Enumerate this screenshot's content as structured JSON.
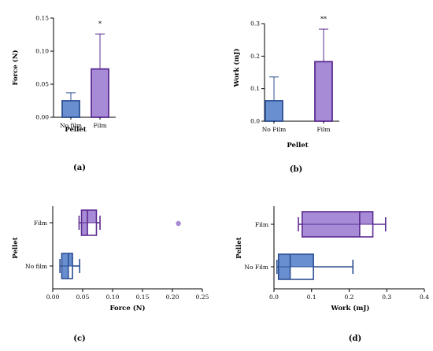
{
  "colors": {
    "blue": "#6a8fd0",
    "blue_stroke": "#2c4f93",
    "purple": "#a78bd6",
    "purple_stroke": "#5b2c91",
    "axis": "#000000"
  },
  "chart_data": [
    {
      "id": "a",
      "type": "bar",
      "panel_label": "(a)",
      "categories": [
        "No film",
        "Film"
      ],
      "values": [
        0.025,
        0.073
      ],
      "errors": [
        0.012,
        0.053
      ],
      "significance": [
        "",
        "*"
      ],
      "xlabel": "Pellet",
      "ylabel": "Force (N)",
      "ylim": [
        0,
        0.15
      ],
      "yticks": [
        0.0,
        0.05,
        0.1,
        0.15
      ],
      "ytick_labels": [
        "0.00",
        "0.05",
        "0.10",
        "0.15"
      ],
      "grid": false
    },
    {
      "id": "b",
      "type": "bar",
      "panel_label": "(b)",
      "categories": [
        "No Film",
        "Film"
      ],
      "values": [
        0.063,
        0.183
      ],
      "errors": [
        0.073,
        0.1
      ],
      "significance": [
        "",
        "**"
      ],
      "xlabel": "Pellet",
      "ylabel": "Work (mJ)",
      "ylim": [
        0,
        0.3
      ],
      "yticks": [
        0.0,
        0.1,
        0.2,
        0.3
      ],
      "ytick_labels": [
        "0.0",
        "0.1",
        "0.2",
        "0.3"
      ],
      "grid": false
    },
    {
      "id": "c",
      "type": "box",
      "orientation": "horizontal",
      "panel_label": "(c)",
      "categories": [
        "Film",
        "No film"
      ],
      "boxes": [
        {
          "min": 0.044,
          "q1": 0.048,
          "median": 0.058,
          "q3": 0.073,
          "max": 0.079,
          "outliers": [
            0.21
          ]
        },
        {
          "min": 0.012,
          "q1": 0.015,
          "median": 0.026,
          "q3": 0.033,
          "max": 0.045,
          "outliers": []
        }
      ],
      "xlabel": "Force (N)",
      "ylabel": "Pellet",
      "xlim": [
        0,
        0.25
      ],
      "xticks": [
        0.0,
        0.05,
        0.1,
        0.15,
        0.2,
        0.25
      ],
      "xtick_labels": [
        "0.00",
        "0.05",
        "0.10",
        "0.15",
        "0.20",
        "0.25"
      ],
      "grid": false
    },
    {
      "id": "d",
      "type": "box",
      "orientation": "horizontal",
      "panel_label": "(d)",
      "categories": [
        "Film",
        "No Film"
      ],
      "boxes": [
        {
          "min": 0.065,
          "q1": 0.075,
          "median": 0.228,
          "q3": 0.263,
          "max": 0.297,
          "outliers": []
        },
        {
          "min": 0.008,
          "q1": 0.012,
          "median": 0.043,
          "q3": 0.105,
          "max": 0.21,
          "outliers": []
        }
      ],
      "xlabel": "Work (mJ)",
      "ylabel": "Pellet",
      "xlim": [
        0,
        0.4
      ],
      "xticks": [
        0.0,
        0.1,
        0.2,
        0.3,
        0.4
      ],
      "xtick_labels": [
        "0.0",
        "0.1",
        "0.2",
        "0.3",
        "0.4"
      ],
      "grid": false
    }
  ]
}
